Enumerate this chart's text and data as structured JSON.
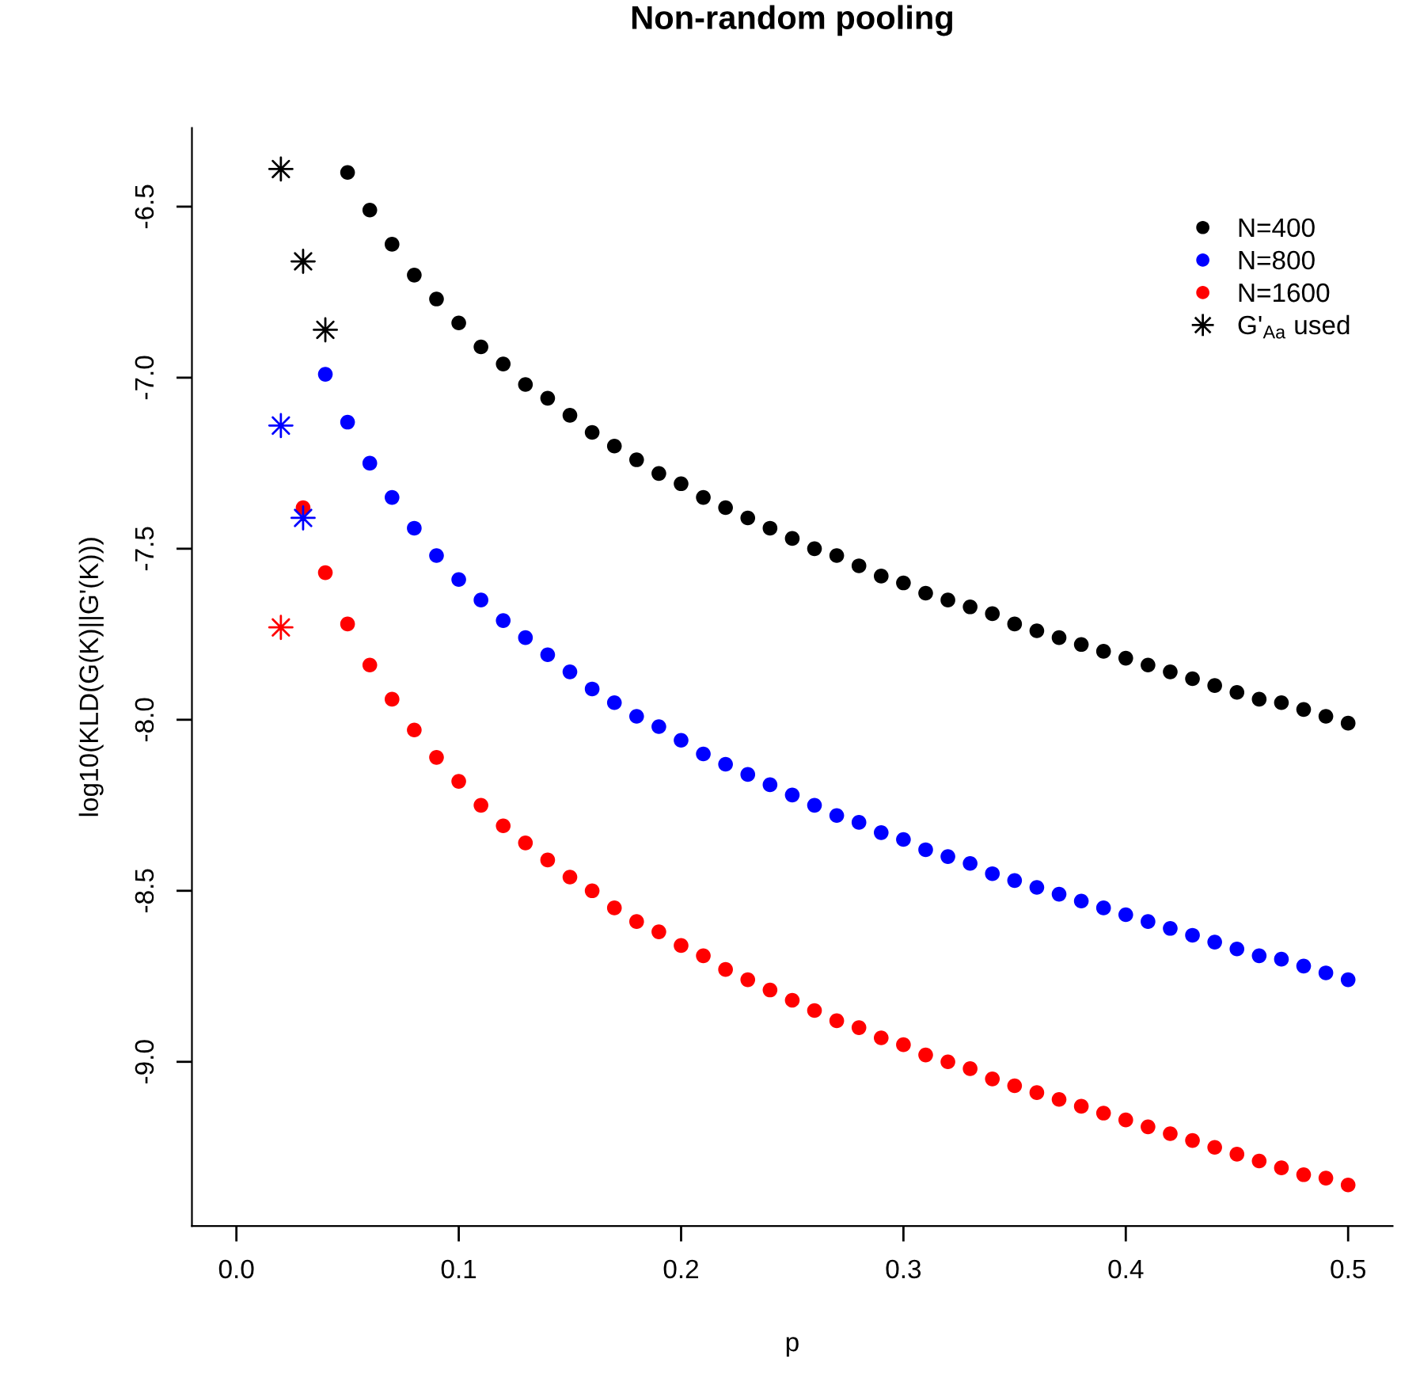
{
  "chart_data": {
    "type": "scatter",
    "title": "Non-random pooling",
    "xlabel": "p",
    "ylabel": "log10(KLD(G(K)||G'(K)))",
    "xlim": [
      -0.02,
      0.52
    ],
    "ylim": [
      -9.48,
      -6.27
    ],
    "xticks": [
      {
        "value": 0,
        "label": "0.0"
      },
      0.1,
      0.2,
      0.3,
      0.4,
      0.5
    ],
    "yticks": [
      -6.5,
      {
        "value": -7,
        "label": "-7.0"
      },
      -7.5,
      {
        "value": -8,
        "label": "-8.0"
      },
      -8.5,
      {
        "value": -9,
        "label": "-9.0"
      }
    ],
    "legend": "top right",
    "series": [
      {
        "name": "N=400",
        "color": "#000000",
        "marker": "circle",
        "x": [
          0.05,
          0.06,
          0.07,
          0.08,
          0.09,
          0.1,
          0.11,
          0.12,
          0.13,
          0.14,
          0.15,
          0.16,
          0.17,
          0.18,
          0.19,
          0.2,
          0.21,
          0.22,
          0.23,
          0.24,
          0.25,
          0.26,
          0.27,
          0.28,
          0.29,
          0.3,
          0.31,
          0.32,
          0.33,
          0.34,
          0.35,
          0.36,
          0.37,
          0.38,
          0.39,
          0.4,
          0.41,
          0.42,
          0.43,
          0.44,
          0.45,
          0.46,
          0.47,
          0.48,
          0.49,
          0.5
        ],
        "values": [
          -6.4,
          -6.51,
          -6.61,
          -6.7,
          -6.77,
          -6.84,
          -6.91,
          -6.96,
          -7.02,
          -7.06,
          -7.11,
          -7.16,
          -7.2,
          -7.24,
          -7.28,
          -7.31,
          -7.35,
          -7.38,
          -7.41,
          -7.44,
          -7.47,
          -7.5,
          -7.52,
          -7.55,
          -7.58,
          -7.6,
          -7.63,
          -7.65,
          -7.67,
          -7.69,
          -7.72,
          -7.74,
          -7.76,
          -7.78,
          -7.8,
          -7.82,
          -7.84,
          -7.86,
          -7.88,
          -7.9,
          -7.92,
          -7.94,
          -7.95,
          -7.97,
          -7.99,
          -8.01
        ]
      },
      {
        "name": "N=800",
        "color": "#0000ff",
        "marker": "circle",
        "x": [
          0.04,
          0.05,
          0.06,
          0.07,
          0.08,
          0.09,
          0.1,
          0.11,
          0.12,
          0.13,
          0.14,
          0.15,
          0.16,
          0.17,
          0.18,
          0.19,
          0.2,
          0.21,
          0.22,
          0.23,
          0.24,
          0.25,
          0.26,
          0.27,
          0.28,
          0.29,
          0.3,
          0.31,
          0.32,
          0.33,
          0.34,
          0.35,
          0.36,
          0.37,
          0.38,
          0.39,
          0.4,
          0.41,
          0.42,
          0.43,
          0.44,
          0.45,
          0.46,
          0.47,
          0.48,
          0.49,
          0.5
        ],
        "values": [
          -6.99,
          -7.13,
          -7.25,
          -7.35,
          -7.44,
          -7.52,
          -7.59,
          -7.65,
          -7.71,
          -7.76,
          -7.81,
          -7.86,
          -7.91,
          -7.95,
          -7.99,
          -8.02,
          -8.06,
          -8.1,
          -8.13,
          -8.16,
          -8.19,
          -8.22,
          -8.25,
          -8.28,
          -8.3,
          -8.33,
          -8.35,
          -8.38,
          -8.4,
          -8.42,
          -8.45,
          -8.47,
          -8.49,
          -8.51,
          -8.53,
          -8.55,
          -8.57,
          -8.59,
          -8.61,
          -8.63,
          -8.65,
          -8.67,
          -8.69,
          -8.7,
          -8.72,
          -8.74,
          -8.76
        ]
      },
      {
        "name": "N=1600",
        "color": "#ff0000",
        "marker": "circle",
        "x": [
          0.03,
          0.04,
          0.05,
          0.06,
          0.07,
          0.08,
          0.09,
          0.1,
          0.11,
          0.12,
          0.13,
          0.14,
          0.15,
          0.16,
          0.17,
          0.18,
          0.19,
          0.2,
          0.21,
          0.22,
          0.23,
          0.24,
          0.25,
          0.26,
          0.27,
          0.28,
          0.29,
          0.3,
          0.31,
          0.32,
          0.33,
          0.34,
          0.35,
          0.36,
          0.37,
          0.38,
          0.39,
          0.4,
          0.41,
          0.42,
          0.43,
          0.44,
          0.45,
          0.46,
          0.47,
          0.48,
          0.49,
          0.5
        ],
        "values": [
          -7.38,
          -7.57,
          -7.72,
          -7.84,
          -7.94,
          -8.03,
          -8.11,
          -8.18,
          -8.25,
          -8.31,
          -8.36,
          -8.41,
          -8.46,
          -8.5,
          -8.55,
          -8.59,
          -8.62,
          -8.66,
          -8.69,
          -8.73,
          -8.76,
          -8.79,
          -8.82,
          -8.85,
          -8.88,
          -8.9,
          -8.93,
          -8.95,
          -8.98,
          -9.0,
          -9.02,
          -9.05,
          -9.07,
          -9.09,
          -9.11,
          -9.13,
          -9.15,
          -9.17,
          -9.19,
          -9.21,
          -9.23,
          -9.25,
          -9.27,
          -9.29,
          -9.31,
          -9.33,
          -9.34,
          -9.36
        ]
      },
      {
        "name": "G'$_{Aa}$ used",
        "color": "#000000",
        "marker": "star",
        "x": [
          0.02,
          0.03,
          0.04
        ],
        "values": [
          -6.39,
          -6.66,
          -6.86
        ]
      },
      {
        "color": "#0000ff",
        "marker": "star",
        "x": [
          0.02,
          0.03
        ],
        "values": [
          -7.14,
          -7.41
        ]
      },
      {
        "color": "#ff0000",
        "marker": "star",
        "x": [
          0.02
        ],
        "values": [
          -7.73
        ]
      }
    ]
  }
}
